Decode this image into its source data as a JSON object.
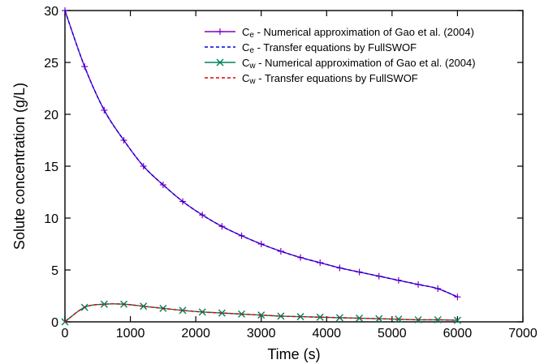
{
  "chart_data": {
    "type": "line",
    "xlabel": "Time (s)",
    "ylabel": "Solute concentration (g/L)",
    "xlim": [
      0,
      7000
    ],
    "ylim": [
      0,
      30
    ],
    "xticks": [
      "0",
      "1000",
      "2000",
      "3000",
      "4000",
      "5000",
      "6000",
      "7000"
    ],
    "yticks": [
      "0",
      "5",
      "10",
      "15",
      "20",
      "25",
      "30"
    ],
    "legend_position": "top-right",
    "grid": false,
    "x": [
      0,
      300,
      600,
      900,
      1200,
      1500,
      1800,
      2100,
      2400,
      2700,
      3000,
      3300,
      3600,
      3900,
      4200,
      4500,
      4800,
      5100,
      5400,
      5700,
      6000
    ],
    "series": [
      {
        "name_main": "C",
        "name_sub": "e",
        "name_rest": " - Numerical approximation of Gao et al. (2004)",
        "color": "#8000c0",
        "dash": "solid",
        "marker": "plus",
        "values": [
          30.0,
          24.6,
          20.4,
          17.5,
          15.0,
          13.2,
          11.6,
          10.3,
          9.2,
          8.3,
          7.5,
          6.8,
          6.2,
          5.7,
          5.2,
          4.8,
          4.4,
          4.0,
          3.6,
          3.2,
          2.4
        ]
      },
      {
        "name_main": "C",
        "name_sub": "e",
        "name_rest": " - Transfer equations by FullSWOF",
        "color": "#0000e0",
        "dash": "dashed",
        "marker": "none",
        "values": [
          30.0,
          24.6,
          20.4,
          17.5,
          15.0,
          13.2,
          11.6,
          10.3,
          9.2,
          8.3,
          7.5,
          6.8,
          6.2,
          5.7,
          5.2,
          4.8,
          4.4,
          4.0,
          3.6,
          3.2,
          2.4
        ]
      },
      {
        "name_main": "C",
        "name_sub": "w",
        "name_rest": " - Numerical approximation of Gao et al. (2004)",
        "color": "#008060",
        "dash": "solid",
        "marker": "x",
        "values": [
          0.0,
          1.4,
          1.7,
          1.7,
          1.5,
          1.3,
          1.1,
          0.95,
          0.85,
          0.75,
          0.65,
          0.55,
          0.5,
          0.45,
          0.4,
          0.35,
          0.3,
          0.25,
          0.2,
          0.2,
          0.15
        ]
      },
      {
        "name_main": "C",
        "name_sub": "w",
        "name_rest": " - Transfer equations by FullSWOF",
        "color": "#e00000",
        "dash": "dashed",
        "marker": "none",
        "values": [
          0.0,
          1.4,
          1.7,
          1.7,
          1.5,
          1.3,
          1.1,
          0.95,
          0.85,
          0.75,
          0.65,
          0.55,
          0.5,
          0.45,
          0.4,
          0.35,
          0.3,
          0.25,
          0.2,
          0.2,
          0.15
        ]
      }
    ]
  }
}
